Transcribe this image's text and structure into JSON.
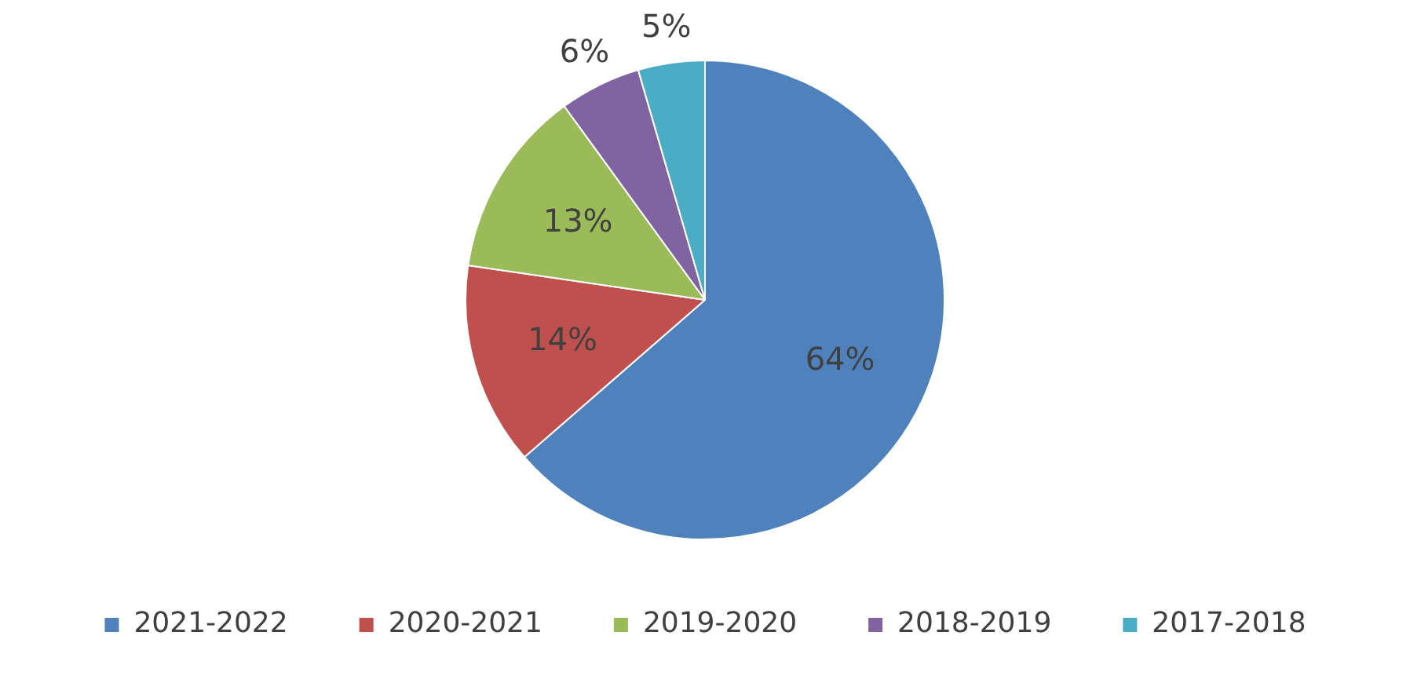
{
  "chart_data": {
    "type": "pie",
    "categories": [
      "2021-2022",
      "2020-2021",
      "2019-2020",
      "2018-2019",
      "2017-2018"
    ],
    "values": [
      63.6,
      13.7,
      12.7,
      5.5,
      4.5
    ],
    "value_labels": [
      "64%",
      "14%",
      "13%",
      "6%",
      "5%"
    ],
    "colors": [
      "#4f81bd",
      "#c0504d",
      "#9bbb59",
      "#8064a2",
      "#4bacc6"
    ],
    "legend": "bottom"
  }
}
